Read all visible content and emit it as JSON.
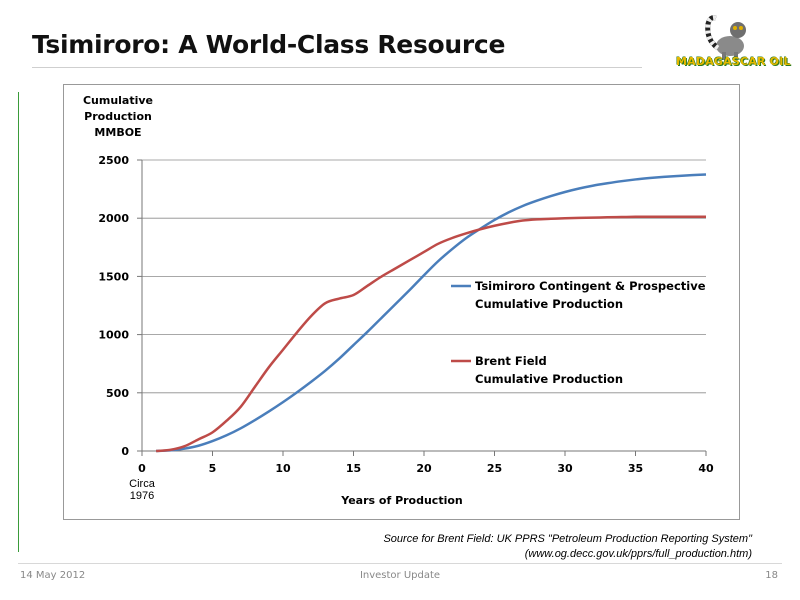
{
  "slide": {
    "title": "Tsimiroro: A World-Class Resource",
    "logo_text": "MADAGASCAR OIL"
  },
  "source": {
    "line1": "Source for Brent Field:  UK PPRS \"Petroleum Production Reporting System\"",
    "line2": "(www.og.decc.gov.uk/pprs/full_production.htm)"
  },
  "footer": {
    "date": "14 May 2012",
    "center": "Investor Update",
    "page": "18"
  },
  "colors": {
    "tsimiroro": "#4a7ebb",
    "brent": "#be4b48",
    "grid": "#8c8c8c",
    "left_bar": "#3a9b3a"
  },
  "chart_data": {
    "type": "line",
    "ylabel_lines": [
      "Cumulative",
      "Production",
      "MMBOE"
    ],
    "xlabel": "Years of Production",
    "x_note_lines": [
      "Circa",
      "1976"
    ],
    "xlim": [
      0,
      40
    ],
    "ylim": [
      0,
      2500
    ],
    "x_ticks": [
      0,
      5,
      10,
      15,
      20,
      25,
      30,
      35,
      40
    ],
    "y_ticks": [
      0,
      500,
      1000,
      1500,
      2000,
      2500
    ],
    "grid": "horizontal",
    "legend_placement": "right",
    "series": [
      {
        "name_lines": [
          "Tsimiroro Contingent & Prospective",
          "Cumulative Production"
        ],
        "color_key": "tsimiroro",
        "x": [
          1,
          2,
          3,
          4,
          5,
          6,
          7,
          8,
          9,
          10,
          11,
          12,
          13,
          14,
          15,
          16,
          17,
          18,
          19,
          20,
          21,
          22,
          23,
          24,
          25,
          26,
          27,
          28,
          29,
          30,
          31,
          32,
          33,
          34,
          35,
          36,
          37,
          38,
          39,
          40
        ],
        "y": [
          0,
          5,
          20,
          45,
          85,
          135,
          195,
          265,
          340,
          420,
          505,
          595,
          690,
          795,
          910,
          1025,
          1145,
          1265,
          1385,
          1510,
          1630,
          1735,
          1830,
          1910,
          1985,
          2050,
          2105,
          2150,
          2190,
          2225,
          2255,
          2280,
          2300,
          2318,
          2333,
          2345,
          2355,
          2363,
          2370,
          2375
        ]
      },
      {
        "name_lines": [
          "Brent Field",
          "Cumulative Production"
        ],
        "color_key": "brent",
        "x": [
          1,
          2,
          3,
          4,
          5,
          6,
          7,
          8,
          9,
          10,
          11,
          12,
          13,
          14,
          15,
          16,
          17,
          18,
          19,
          20,
          21,
          22,
          23,
          24,
          25,
          26,
          27,
          28,
          29,
          30,
          31,
          32,
          33,
          34,
          35,
          36,
          37,
          38,
          39,
          40
        ],
        "y": [
          0,
          10,
          40,
          100,
          160,
          260,
          380,
          550,
          720,
          870,
          1020,
          1160,
          1270,
          1310,
          1340,
          1420,
          1500,
          1570,
          1640,
          1710,
          1780,
          1830,
          1870,
          1905,
          1935,
          1960,
          1980,
          1990,
          1995,
          2000,
          2003,
          2005,
          2008,
          2010,
          2012,
          2012,
          2012,
          2012,
          2012,
          2012
        ]
      }
    ]
  }
}
